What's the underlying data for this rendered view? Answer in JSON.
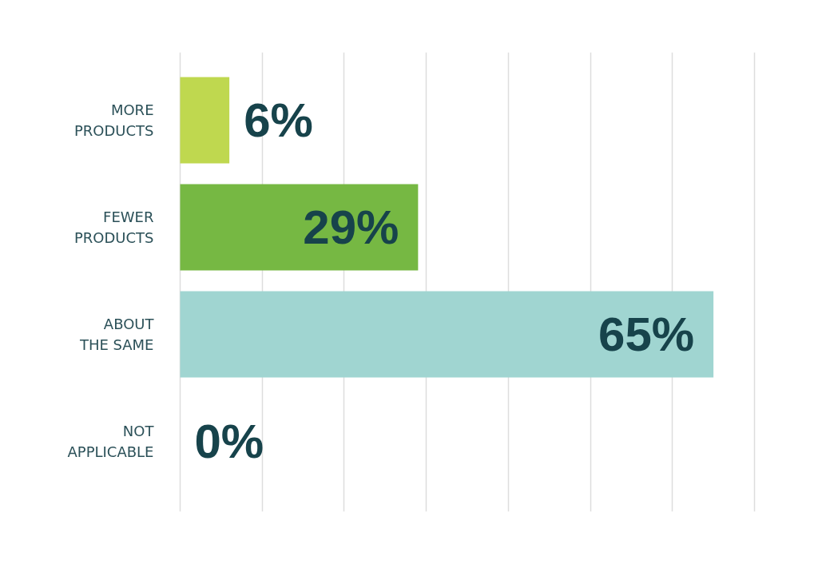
{
  "chart_data": {
    "type": "bar",
    "orientation": "horizontal",
    "categories": [
      "MORE PRODUCTS",
      "FEWER PRODUCTS",
      "ABOUT THE SAME",
      "NOT APPLICABLE"
    ],
    "values": [
      6,
      29,
      65,
      0
    ],
    "colors": [
      "#bfd84f",
      "#76b843",
      "#a0d5d1",
      null
    ],
    "value_labels": [
      "6%",
      "29%",
      "65%",
      "0%"
    ],
    "xlim": [
      0,
      70
    ],
    "xticks": [
      {
        "value": 0,
        "label": null
      },
      {
        "value": 10,
        "label": null
      },
      {
        "value": 20,
        "label": null
      },
      {
        "value": 30,
        "label": null
      },
      {
        "value": 40,
        "label": null
      },
      {
        "value": 50,
        "label": null
      },
      {
        "value": 60,
        "label": null
      },
      {
        "value": 70,
        "label": null
      }
    ],
    "grid": "x",
    "tick_labels": "y"
  }
}
